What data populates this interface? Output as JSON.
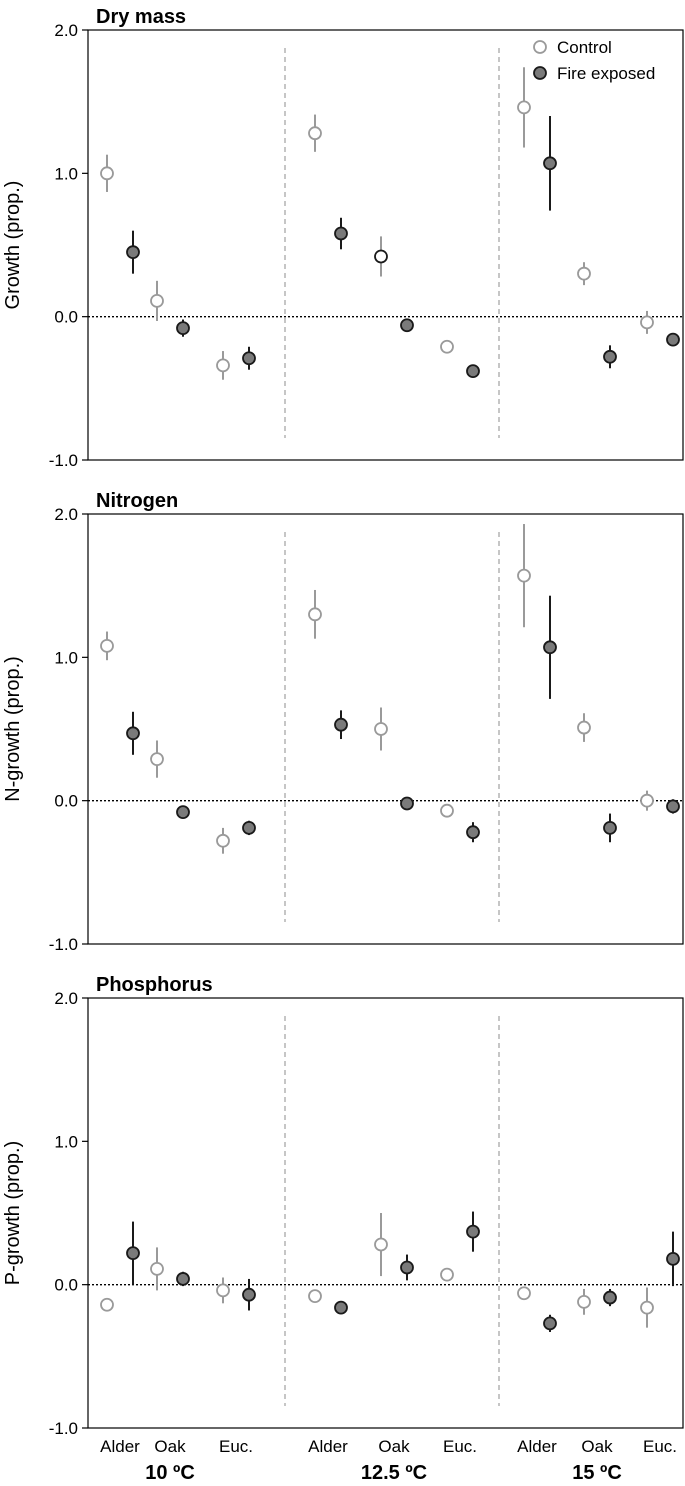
{
  "chart_data": [
    {
      "type": "scatter",
      "title": "Dry mass",
      "ylabel": "Growth (prop.)",
      "ylim": [
        -1.0,
        2.0
      ],
      "yticks": [
        "2.0",
        "1.0",
        "0.0",
        "-1.0"
      ],
      "categories": [
        "Alder",
        "Oak",
        "Euc.",
        "Alder",
        "Oak",
        "Euc.",
        "Alder",
        "Oak",
        "Euc."
      ],
      "groups": [
        "10 ºC",
        "12.5 ºC",
        "15 ºC"
      ],
      "reference_line": 0,
      "legend": {
        "position": "top-right",
        "entries": [
          "Control",
          "Fire exposed"
        ]
      },
      "series": [
        {
          "name": "Control",
          "color": "#9e9e9e",
          "values": [
            1.0,
            0.11,
            -0.34,
            1.28,
            0.42,
            -0.21,
            1.46,
            0.3,
            -0.04
          ],
          "errors": [
            0.13,
            0.14,
            0.1,
            0.13,
            0.14,
            0.03,
            0.28,
            0.08,
            0.08
          ]
        },
        {
          "name": "Fire exposed",
          "color": "#7a7a7a",
          "values": [
            0.45,
            -0.08,
            -0.29,
            0.58,
            -0.06,
            -0.38,
            1.07,
            -0.28,
            -0.16
          ],
          "errors": [
            0.15,
            0.06,
            0.08,
            0.11,
            0.03,
            0.03,
            0.33,
            0.08,
            0.03
          ]
        }
      ]
    },
    {
      "type": "scatter",
      "title": "Nitrogen",
      "ylabel": "N-growth (prop.)",
      "ylim": [
        -1.0,
        2.0
      ],
      "yticks": [
        "2.0",
        "1.0",
        "0.0",
        "-1.0"
      ],
      "categories": [
        "Alder",
        "Oak",
        "Euc.",
        "Alder",
        "Oak",
        "Euc.",
        "Alder",
        "Oak",
        "Euc."
      ],
      "groups": [
        "10 ºC",
        "12.5 ºC",
        "15 ºC"
      ],
      "reference_line": 0,
      "series": [
        {
          "name": "Control",
          "color": "#9e9e9e",
          "values": [
            1.08,
            0.29,
            -0.28,
            1.3,
            0.5,
            -0.07,
            1.57,
            0.51,
            0.0
          ],
          "errors": [
            0.1,
            0.13,
            0.09,
            0.17,
            0.15,
            0.03,
            0.36,
            0.1,
            0.07
          ]
        },
        {
          "name": "Fire exposed",
          "color": "#7a7a7a",
          "values": [
            0.47,
            -0.08,
            -0.19,
            0.53,
            -0.02,
            -0.22,
            1.07,
            -0.19,
            -0.04
          ],
          "errors": [
            0.15,
            0.04,
            0.05,
            0.1,
            0.03,
            0.07,
            0.36,
            0.1,
            0.05
          ]
        }
      ]
    },
    {
      "type": "scatter",
      "title": "Phosphorus",
      "ylabel": "P-growth (prop.)",
      "ylim": [
        -1.0,
        2.0
      ],
      "yticks": [
        "2.0",
        "1.0",
        "0.0",
        "-1.0"
      ],
      "categories": [
        "Alder",
        "Oak",
        "Euc.",
        "Alder",
        "Oak",
        "Euc.",
        "Alder",
        "Oak",
        "Euc."
      ],
      "groups": [
        "10 ºC",
        "12.5 ºC",
        "15 ºC"
      ],
      "reference_line": 0,
      "series": [
        {
          "name": "Control",
          "color": "#9e9e9e",
          "values": [
            -0.14,
            0.11,
            -0.04,
            -0.08,
            0.28,
            0.07,
            -0.06,
            -0.12,
            -0.16
          ],
          "errors": [
            0.03,
            0.15,
            0.09,
            0.03,
            0.22,
            0.03,
            0.04,
            0.09,
            0.14
          ]
        },
        {
          "name": "Fire exposed",
          "color": "#7a7a7a",
          "values": [
            0.22,
            0.04,
            -0.07,
            -0.16,
            0.12,
            0.37,
            -0.27,
            -0.09,
            0.18
          ],
          "errors": [
            0.22,
            0.05,
            0.11,
            0.03,
            0.09,
            0.14,
            0.06,
            0.06,
            0.19
          ]
        }
      ]
    }
  ]
}
